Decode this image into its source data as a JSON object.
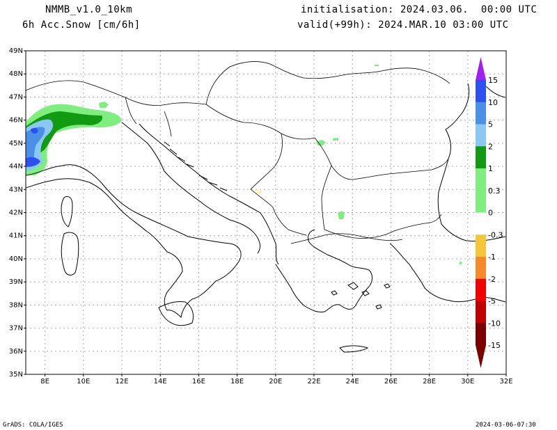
{
  "header": {
    "model": "NMMB_v1.0_10km",
    "field": "6h Acc.Snow [cm/6h]",
    "init": "initialisation: 2024.03.06.  00:00 UTC",
    "valid": "valid(+99h): 2024.MAR.10 03:00 UTC"
  },
  "axes": {
    "lat_labels": [
      "49N",
      "48N",
      "47N",
      "46N",
      "45N",
      "44N",
      "43N",
      "42N",
      "41N",
      "40N",
      "39N",
      "38N",
      "37N",
      "36N",
      "35N"
    ],
    "lon_labels": [
      "8E",
      "10E",
      "12E",
      "14E",
      "16E",
      "18E",
      "20E",
      "22E",
      "24E",
      "26E",
      "28E",
      "30E",
      "32E"
    ]
  },
  "colorbar": {
    "labels": [
      "15",
      "10",
      "5",
      "2",
      "1",
      "0.3",
      "0",
      "-0.3",
      "-1",
      "-2",
      "-5",
      "-10",
      "-15"
    ],
    "colors": [
      "#a020f0",
      "#2d50f0",
      "#4a90e8",
      "#8cc8f5",
      "#129a12",
      "#7eef7e",
      "#ffffff",
      "#fff8c8",
      "#f6c63a",
      "#f58a2a",
      "#f00000",
      "#c00000",
      "#7a0000"
    ]
  },
  "footer": {
    "left": "GrADS: COLA/IGES",
    "right": "2024-03-06-07:30"
  }
}
